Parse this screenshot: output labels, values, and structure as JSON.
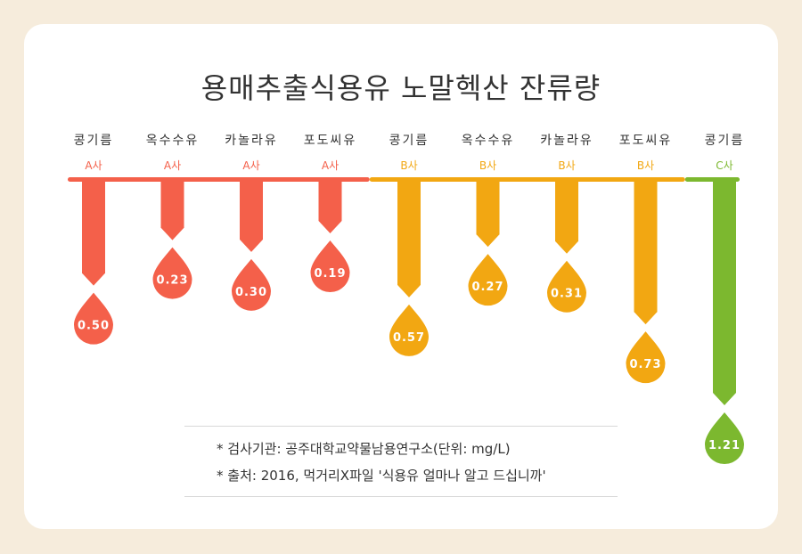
{
  "title": "용매추출식용유 노말헥산 잔류량",
  "colors": {
    "A사": "#f4604a",
    "B사": "#f2a712",
    "C사": "#7cb82f"
  },
  "chart_data": {
    "type": "bar",
    "categories": [
      "콩기름",
      "옥수수유",
      "카놀라유",
      "포도씨유",
      "콩기름",
      "옥수수유",
      "카놀라유",
      "포도씨유",
      "콩기름"
    ],
    "companies": [
      "A사",
      "A사",
      "A사",
      "A사",
      "B사",
      "B사",
      "B사",
      "B사",
      "C사"
    ],
    "values": [
      0.5,
      0.23,
      0.3,
      0.19,
      0.57,
      0.27,
      0.31,
      0.73,
      1.21
    ],
    "value_labels": [
      "0.50",
      "0.23",
      "0.30",
      "0.19",
      "0.57",
      "0.27",
      "0.31",
      "0.73",
      "1.21"
    ],
    "title": "용매추출식용유 노말헥산 잔류량",
    "orientation": "downward"
  },
  "notes": [
    "* 검사기관: 공주대학교약물남용연구소(단위: mg/L)",
    "* 출처: 2016, 먹거리X파일 '식용유 얼마나 알고 드십니까'"
  ]
}
